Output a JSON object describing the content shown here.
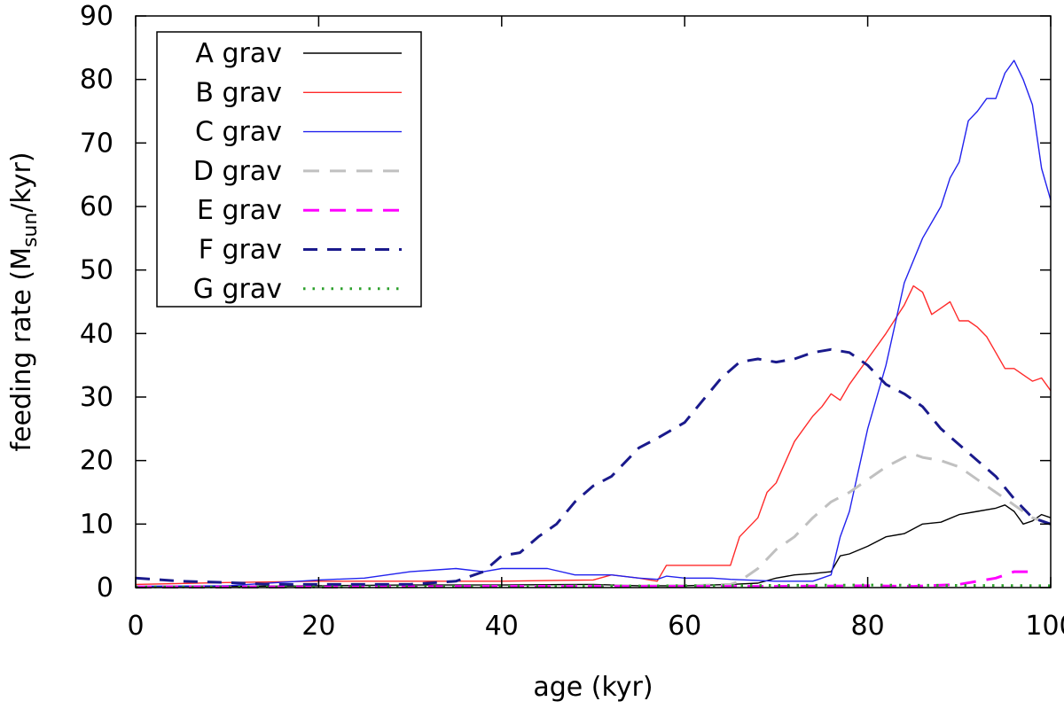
{
  "chart_data": {
    "type": "line",
    "xlabel": "age (kyr)",
    "ylabel": {
      "prefix": "feeding rate (M",
      "subscript": "sun",
      "suffix": "/kyr)"
    },
    "xlim": [
      0,
      100
    ],
    "ylim": [
      0,
      90
    ],
    "xticks": [
      "0",
      "20",
      "40",
      "60",
      "80",
      "100"
    ],
    "yticks": [
      "0",
      "10",
      "20",
      "30",
      "40",
      "50",
      "60",
      "70",
      "80",
      "90"
    ],
    "grid": false,
    "legend_position": "top-left",
    "series": [
      {
        "name": "A grav",
        "color": "#000000",
        "style": "solid",
        "x": [
          0,
          10,
          20,
          30,
          40,
          50,
          55,
          60,
          65,
          68,
          70,
          72,
          74,
          76,
          77,
          78,
          80,
          82,
          84,
          86,
          88,
          90,
          92,
          94,
          95,
          96,
          97,
          98,
          99,
          100
        ],
        "y": [
          0.2,
          0.2,
          0.3,
          0.4,
          0.4,
          0.5,
          0.3,
          0.3,
          0.5,
          0.7,
          1.5,
          2.0,
          2.2,
          2.5,
          5.0,
          5.3,
          6.5,
          8.0,
          8.5,
          10.0,
          10.3,
          11.5,
          12.0,
          12.5,
          13.0,
          12.0,
          10.0,
          10.5,
          11.5,
          11.0
        ]
      },
      {
        "name": "B grav",
        "color": "#ff2a2a",
        "style": "solid",
        "x": [
          0,
          10,
          20,
          30,
          40,
          50,
          52,
          55,
          57,
          58,
          65,
          66,
          68,
          69,
          70,
          72,
          74,
          75,
          76,
          77,
          78,
          80,
          82,
          84,
          85,
          86,
          87,
          88,
          89,
          90,
          91,
          92,
          93,
          94,
          95,
          96,
          97,
          98,
          99,
          100
        ],
        "y": [
          0.5,
          0.8,
          1.0,
          1.0,
          1.0,
          1.2,
          2.0,
          1.5,
          1.0,
          3.5,
          3.5,
          8.0,
          11.0,
          15.0,
          16.5,
          23.0,
          27.0,
          28.5,
          30.5,
          29.5,
          32.0,
          36.0,
          40.0,
          44.5,
          47.5,
          46.5,
          43.0,
          44.0,
          45.0,
          42.0,
          42.0,
          41.0,
          39.5,
          37.0,
          34.5,
          34.5,
          33.5,
          32.5,
          33.0,
          31.0
        ]
      },
      {
        "name": "C grav",
        "color": "#2222ee",
        "style": "solid",
        "x": [
          0,
          10,
          20,
          25,
          30,
          35,
          38,
          40,
          45,
          48,
          50,
          52,
          55,
          57,
          58,
          60,
          63,
          65,
          70,
          72,
          74,
          75,
          76,
          77,
          78,
          80,
          82,
          84,
          86,
          88,
          89,
          90,
          91,
          92,
          93,
          94,
          95,
          96,
          97,
          98,
          99,
          100
        ],
        "y": [
          0.2,
          0.3,
          1.2,
          1.5,
          2.5,
          3.0,
          2.5,
          3.0,
          3.0,
          2.0,
          2.0,
          2.0,
          1.5,
          1.3,
          1.8,
          1.5,
          1.5,
          1.3,
          1.0,
          1.0,
          1.0,
          1.5,
          2.0,
          8.0,
          12.0,
          25.0,
          35.0,
          48.0,
          55.0,
          60.0,
          64.5,
          67.0,
          73.5,
          75.0,
          77.0,
          77.0,
          81.0,
          83.0,
          80.0,
          76.0,
          66.0,
          61.0
        ]
      },
      {
        "name": "D grav",
        "color": "#c0c0c0",
        "style": "dashed",
        "x": [
          0,
          20,
          40,
          60,
          65,
          66,
          68,
          70,
          72,
          74,
          76,
          78,
          80,
          82,
          84,
          85,
          86,
          88,
          90,
          92,
          94,
          96,
          98,
          100
        ],
        "y": [
          0,
          0,
          0.2,
          0.3,
          0.5,
          1.0,
          3.0,
          6.0,
          8.0,
          11.0,
          13.5,
          15.0,
          17.0,
          19.0,
          20.5,
          21.0,
          20.5,
          20.0,
          19.0,
          17.0,
          15.0,
          13.0,
          11.0,
          10.0
        ]
      },
      {
        "name": "E grav",
        "color": "#ff00ff",
        "style": "dashed",
        "x": [
          0,
          20,
          40,
          60,
          70,
          80,
          85,
          90,
          92,
          94,
          96,
          97,
          98
        ],
        "y": [
          0.1,
          0.1,
          0.2,
          0.2,
          0.2,
          0.3,
          0.2,
          0.5,
          1.0,
          1.5,
          2.5,
          2.5,
          2.5
        ]
      },
      {
        "name": "F grav",
        "color": "#1a1a8c",
        "style": "dashed-long",
        "x": [
          0,
          5,
          10,
          15,
          20,
          30,
          35,
          38,
          40,
          42,
          44,
          46,
          48,
          50,
          52,
          54,
          55,
          57,
          60,
          62,
          64,
          66,
          68,
          70,
          72,
          74,
          76,
          78,
          80,
          82,
          84,
          86,
          88,
          90,
          92,
          94,
          96,
          98,
          100
        ],
        "y": [
          1.5,
          1.0,
          0.8,
          0.5,
          0.5,
          0.5,
          1.0,
          2.5,
          5.0,
          5.5,
          8.0,
          10.0,
          13.5,
          16.0,
          17.5,
          20.5,
          22.0,
          23.5,
          26.0,
          29.5,
          33.0,
          35.5,
          36.0,
          35.5,
          36.0,
          37.0,
          37.5,
          37.0,
          35.0,
          32.0,
          30.5,
          28.5,
          25.0,
          22.5,
          20.0,
          17.5,
          14.0,
          11.0,
          10.0
        ]
      },
      {
        "name": "G grav",
        "color": "#2ca02c",
        "style": "dotted",
        "x": [
          0,
          20,
          40,
          60,
          80,
          100
        ],
        "y": [
          0.1,
          0.1,
          0.2,
          0.3,
          0.4,
          0.3
        ]
      }
    ]
  }
}
